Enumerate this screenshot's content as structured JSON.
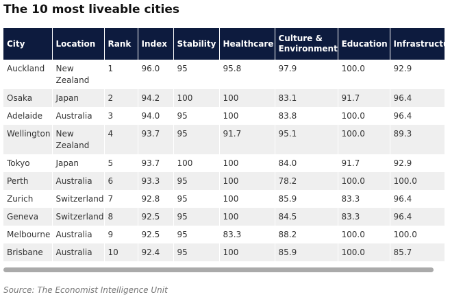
{
  "title": "The 10 most liveable cities",
  "columns": [
    "City",
    "Location",
    "Rank",
    "Index",
    "Stability",
    "Healthcare",
    "Culture & Environment",
    "Education",
    "Infrastructure"
  ],
  "rows": [
    [
      "Auckland",
      "New Zealand",
      "1",
      "96.0",
      "95",
      "95.8",
      "97.9",
      "100.0",
      "92.9"
    ],
    [
      "Osaka",
      "Japan",
      "2",
      "94.2",
      "100",
      "100",
      "83.1",
      "91.7",
      "96.4"
    ],
    [
      "Adelaide",
      "Australia",
      "3",
      "94.0",
      "95",
      "100",
      "83.8",
      "100.0",
      "96.4"
    ],
    [
      "Wellington",
      "New Zealand",
      "4",
      "93.7",
      "95",
      "91.7",
      "95.1",
      "100.0",
      "89.3"
    ],
    [
      "Tokyo",
      "Japan",
      "5",
      "93.7",
      "100",
      "100",
      "84.0",
      "91.7",
      "92.9"
    ],
    [
      "Perth",
      "Australia",
      "6",
      "93.3",
      "95",
      "100",
      "78.2",
      "100.0",
      "100.0"
    ],
    [
      "Zurich",
      "Switzerland",
      "7",
      "92.8",
      "95",
      "100",
      "85.9",
      "83.3",
      "96.4"
    ],
    [
      "Geneva",
      "Switzerland",
      "8",
      "92.5",
      "95",
      "100",
      "84.5",
      "83.3",
      "96.4"
    ],
    [
      "Melbourne",
      "Australia",
      "9",
      "92.5",
      "95",
      "83.3",
      "88.2",
      "100.0",
      "100.0"
    ],
    [
      "Brisbane",
      "Australia",
      "10",
      "92.4",
      "95",
      "100",
      "85.9",
      "100.0",
      "85.7"
    ]
  ],
  "source": "Source: The Economist Intelligence Unit"
}
